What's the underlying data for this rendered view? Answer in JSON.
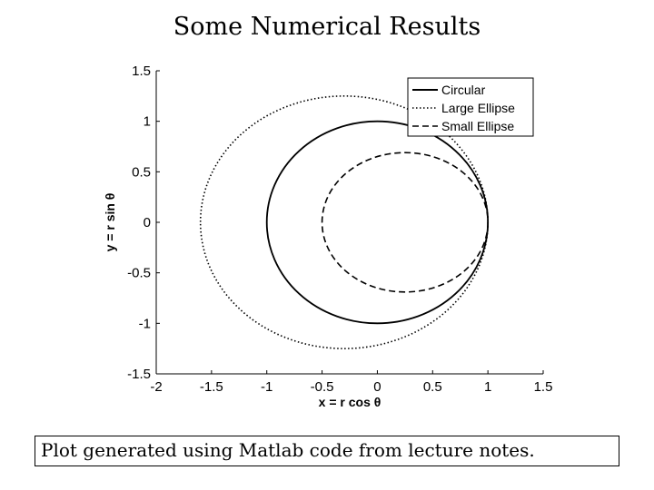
{
  "slide": {
    "title": "Some Numerical Results",
    "caption": "Plot generated using Matlab code from lecture notes."
  },
  "chart_data": {
    "type": "line",
    "title": "",
    "xlabel": "x = r cos θ",
    "ylabel": "y = r sin θ",
    "xlim": [
      -2,
      1.5
    ],
    "ylim": [
      -1.5,
      1.5
    ],
    "xticks": [
      -2,
      -1.5,
      -1,
      -0.5,
      0,
      0.5,
      1,
      1.5
    ],
    "yticks": [
      -1.5,
      -1,
      -0.5,
      0,
      0.5,
      1,
      1.5
    ],
    "xtick_labels": [
      "-2",
      "-1.5",
      "-1",
      "-0.5",
      "0",
      "0.5",
      "1",
      "1.5"
    ],
    "ytick_labels": [
      "-1.5",
      "-1",
      "-0.5",
      "0",
      "0.5",
      "1",
      "1.5"
    ],
    "grid": false,
    "legend_position": "top-right",
    "series": [
      {
        "name": "Circular",
        "style": "solid",
        "center": [
          0,
          0
        ],
        "semi_axes": [
          1,
          1
        ]
      },
      {
        "name": "Large Ellipse",
        "style": "dotted",
        "center": [
          -0.3,
          0
        ],
        "semi_axes": [
          1.3,
          1.25
        ]
      },
      {
        "name": "Small Ellipse",
        "style": "dashed",
        "center": [
          0.25,
          0
        ],
        "semi_axes": [
          0.75,
          0.69
        ]
      }
    ]
  }
}
